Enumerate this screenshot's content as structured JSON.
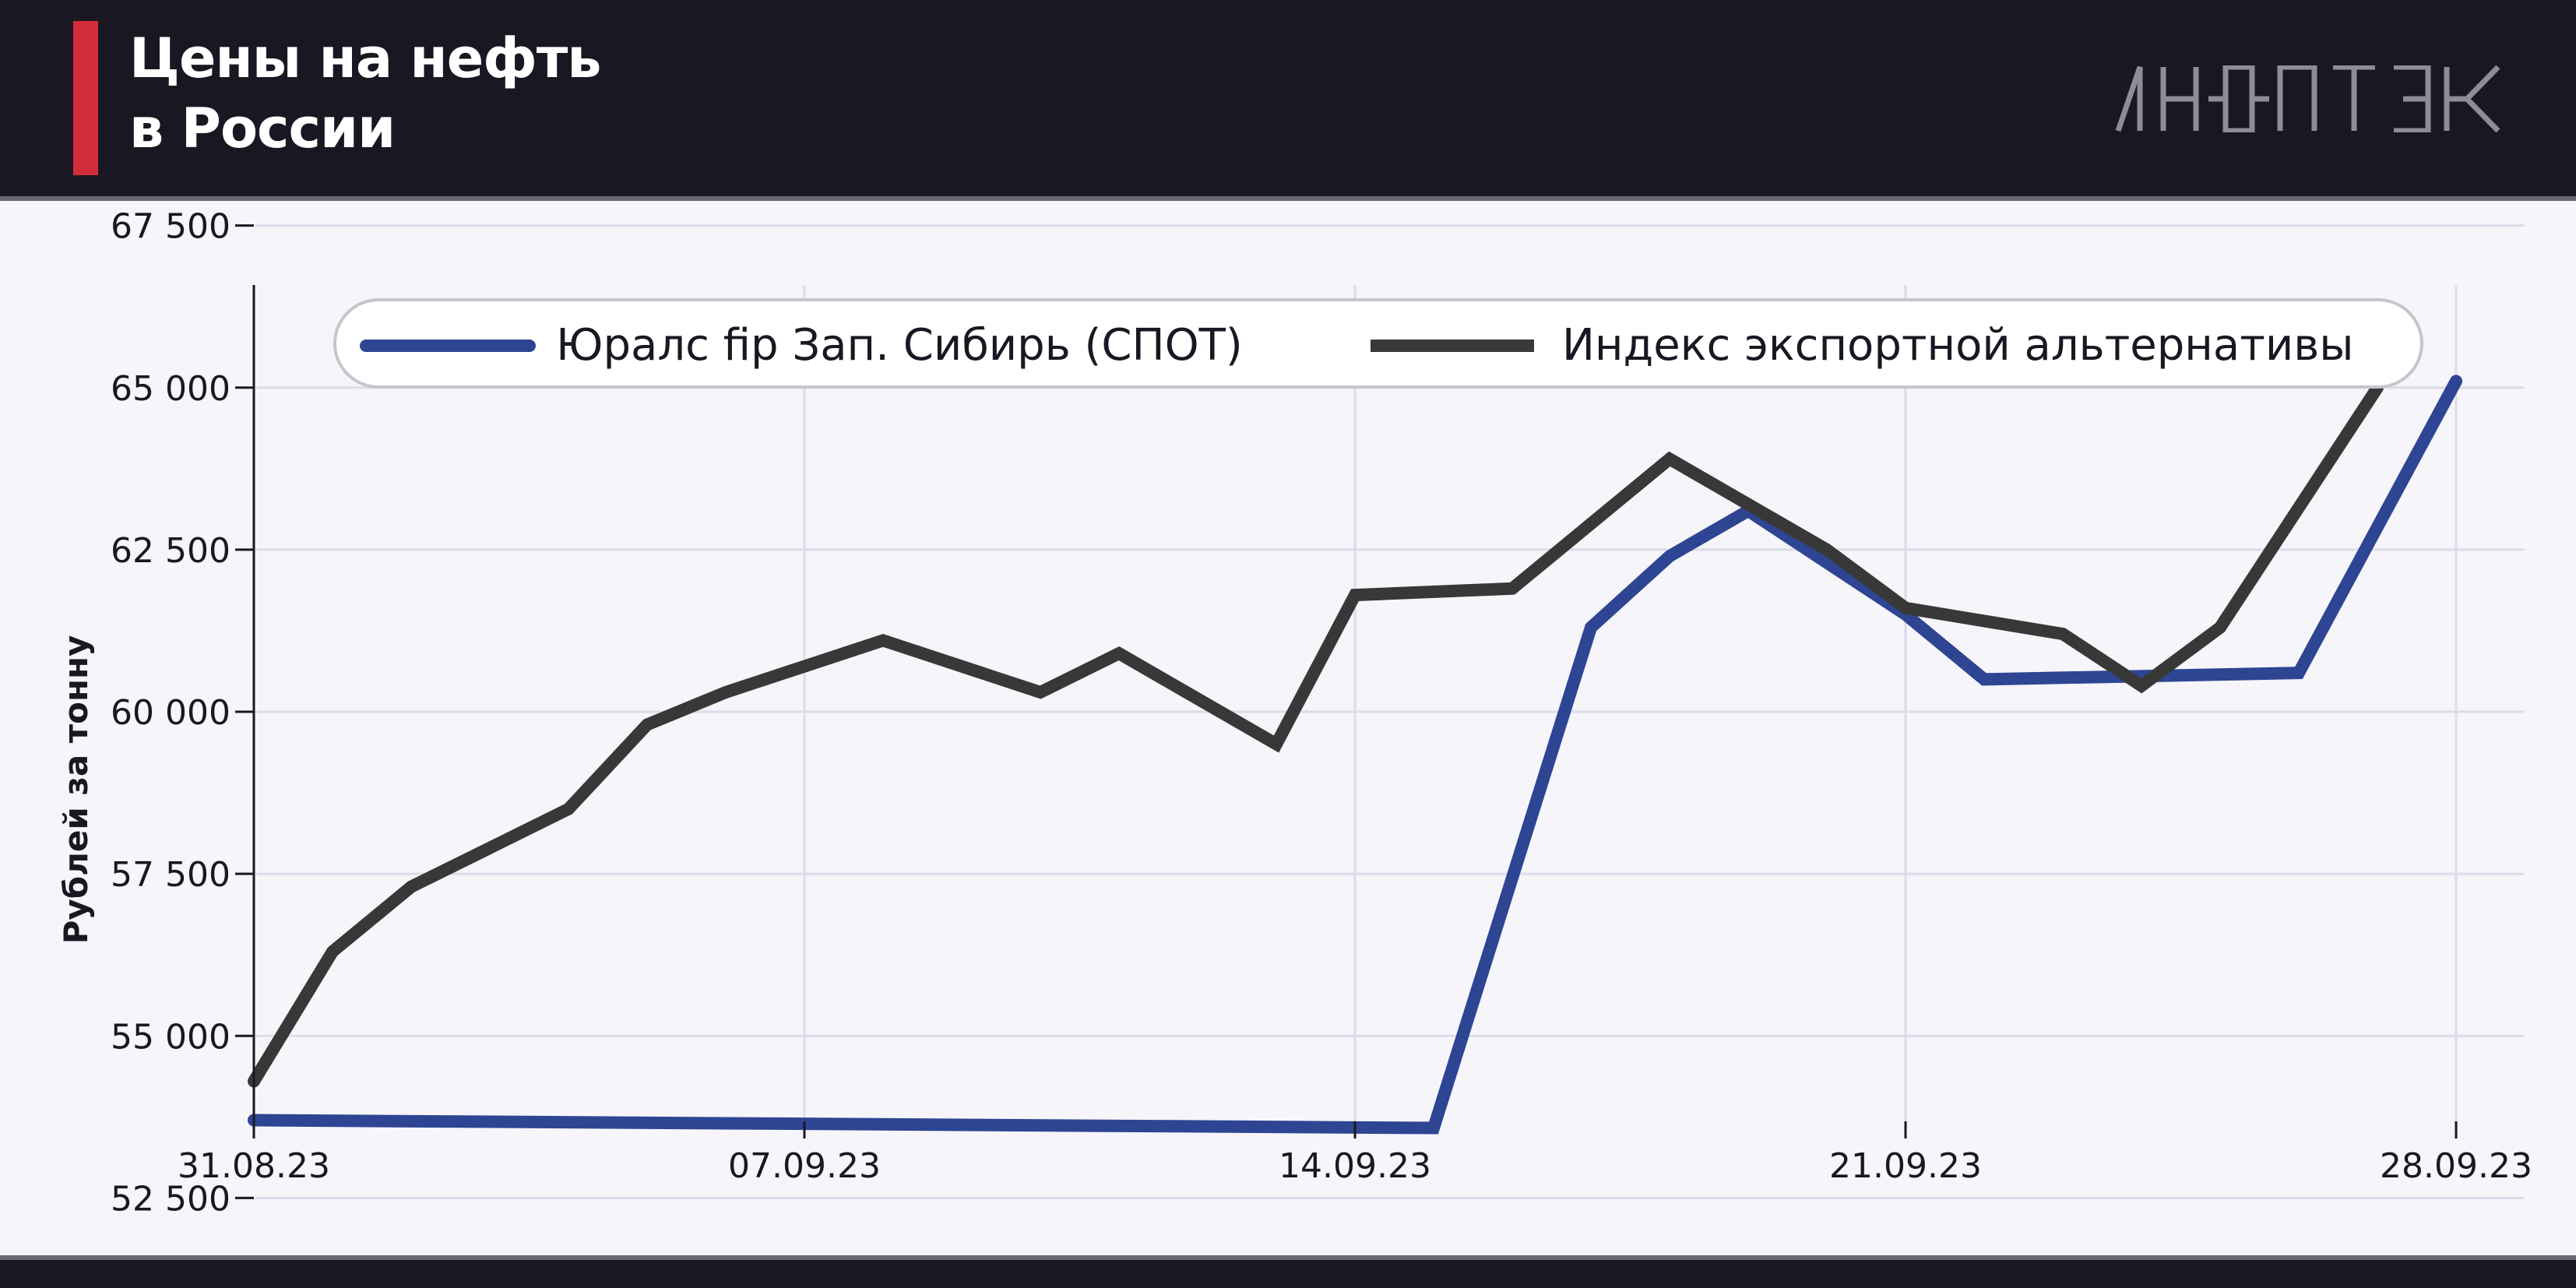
{
  "header": {
    "title_lines": [
      "Цены на нефть",
      "в России"
    ],
    "logo": "ИНФОТЭК"
  },
  "colors": {
    "header_bg": "#1b1722",
    "accent": "#d42d3a",
    "urals": "#2e4593",
    "index": "#383838",
    "grid": "#dcdcea"
  },
  "chart_data": {
    "type": "line",
    "ylabel": "Рублей за тонну",
    "xlabel": "",
    "ylim": [
      52000,
      68000
    ],
    "yticks": [
      52500,
      55000,
      57500,
      60000,
      62500,
      65000,
      67500
    ],
    "ytick_labels": [
      "52 500",
      "55 000",
      "57 500",
      "60 000",
      "62 500",
      "65 000",
      "67 500"
    ],
    "xlim": [
      "2023-08-31",
      "2023-09-28"
    ],
    "xticks": [
      "2023-08-31",
      "2023-09-07",
      "2023-09-14",
      "2023-09-21",
      "2023-09-28"
    ],
    "xtick_labels": [
      "31.08.23",
      "07.09.23",
      "14.09.23",
      "21.09.23",
      "28.09.23"
    ],
    "grid": true,
    "legend": "top",
    "series": [
      {
        "name": "Юралс fip Зап. Сибирь (СПОТ)",
        "color": "#2e4593",
        "points": [
          [
            "2023-08-31",
            53700
          ],
          [
            "2023-09-15",
            53580
          ],
          [
            "2023-09-17",
            61300
          ],
          [
            "2023-09-18",
            62400
          ],
          [
            "2023-09-19",
            63100
          ],
          [
            "2023-09-21",
            61500
          ],
          [
            "2023-09-22",
            60500
          ],
          [
            "2023-09-26",
            60600
          ],
          [
            "2023-09-28",
            65100
          ]
        ]
      },
      {
        "name": "Индекс экспортной альтернативы",
        "color": "#383838",
        "points": [
          [
            "2023-08-31",
            54300
          ],
          [
            "2023-09-01",
            56300
          ],
          [
            "2023-09-02",
            57300
          ],
          [
            "2023-09-04",
            58500
          ],
          [
            "2023-09-05",
            59800
          ],
          [
            "2023-09-06",
            60300
          ],
          [
            "2023-09-08",
            61100
          ],
          [
            "2023-09-10",
            60300
          ],
          [
            "2023-09-11",
            60900
          ],
          [
            "2023-09-13",
            59500
          ],
          [
            "2023-09-14",
            61800
          ],
          [
            "2023-09-16",
            61900
          ],
          [
            "2023-09-17",
            62900
          ],
          [
            "2023-09-18",
            63900
          ],
          [
            "2023-09-20",
            62500
          ],
          [
            "2023-09-21",
            61600
          ],
          [
            "2023-09-23",
            61200
          ],
          [
            "2023-09-24",
            60400
          ],
          [
            "2023-09-25",
            61300
          ],
          [
            "2023-09-27",
            65000
          ]
        ]
      }
    ]
  }
}
